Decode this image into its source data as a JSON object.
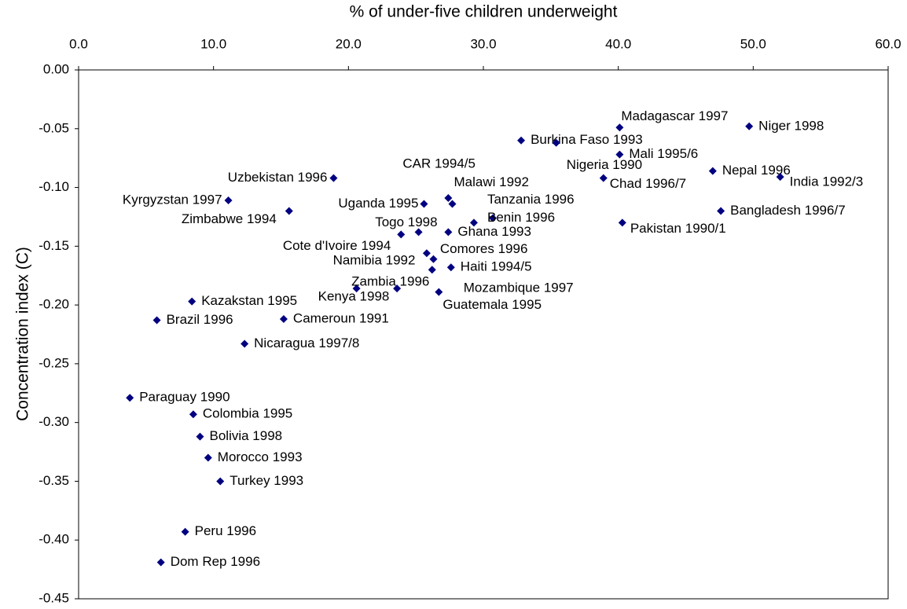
{
  "chart_data": {
    "type": "scatter",
    "x_label": "% of under-five children underweight",
    "y_label": "Concentration index (C)",
    "xlim": [
      0,
      60
    ],
    "xticks": [
      {
        "value": 0,
        "label": "0.0"
      },
      {
        "value": 10,
        "label": "10.0"
      },
      {
        "value": 20,
        "label": "20.0"
      },
      {
        "value": 30,
        "label": "30.0"
      },
      {
        "value": 40,
        "label": "40.0"
      },
      {
        "value": 50,
        "label": "50.0"
      },
      {
        "value": 60,
        "label": "60.0"
      }
    ],
    "ylim": [
      -0.45,
      0
    ],
    "yticks": [
      {
        "value": 0,
        "label": "0.00"
      },
      {
        "value": -0.05,
        "label": "-0.05"
      },
      {
        "value": -0.1,
        "label": "-0.10"
      },
      {
        "value": -0.15,
        "label": "-0.15"
      },
      {
        "value": -0.2,
        "label": "-0.20"
      },
      {
        "value": -0.25,
        "label": "-0.25"
      },
      {
        "value": -0.3,
        "label": "-0.30"
      },
      {
        "value": -0.35,
        "label": "-0.35"
      },
      {
        "value": -0.4,
        "label": "-0.40"
      },
      {
        "value": -0.45,
        "label": "-0.45"
      }
    ],
    "color": "#000080",
    "labels": [
      "Madagascar 1997",
      "Niger 1998",
      "Burkina Faso 1993",
      "Mali 1995/6",
      "Nigeria 1990",
      "Chad 1996/7",
      "Nepal 1996",
      "India 1992/3",
      "Uzbekistan 1996",
      "CAR 1994/5",
      "Malawi 1992",
      "Tanzania 1996",
      "Benin 1996",
      "Kyrgyzstan 1997",
      "Zimbabwe 1994",
      "Uganda 1995",
      "Bangladesh 1996/7",
      "Pakistan 1990/1",
      "Togo 1998",
      "Cote d'Ivoire 1994",
      "Ghana 1993",
      "Comores 1996",
      "Namibia 1992",
      "Haiti 1994/5",
      "Mozambique 1997",
      "Kenya 1998",
      "Zambia 1996",
      "Guatemala 1995",
      "Kazakstan 1995",
      "Brazil 1996",
      "Cameroun 1991",
      "Nicaragua 1997/8",
      "Paraguay 1990",
      "Colombia 1995",
      "Bolivia 1998",
      "Morocco 1993",
      "Turkey 1993",
      "Peru 1996",
      "Dom Rep 1996"
    ],
    "x": [
      40.1,
      49.7,
      32.8,
      40.1,
      35.4,
      38.9,
      47.0,
      52.0,
      18.9,
      27.4,
      27.7,
      29.3,
      30.7,
      11.1,
      15.6,
      25.6,
      47.6,
      40.3,
      25.2,
      23.9,
      27.4,
      25.8,
      26.3,
      27.6,
      26.2,
      20.6,
      23.6,
      26.7,
      8.4,
      5.8,
      15.2,
      12.3,
      3.8,
      8.5,
      9.0,
      9.6,
      10.5,
      7.9,
      6.1
    ],
    "values": [
      -0.049,
      -0.048,
      -0.06,
      -0.072,
      -0.062,
      -0.092,
      -0.086,
      -0.091,
      -0.092,
      -0.109,
      -0.114,
      -0.13,
      -0.126,
      -0.111,
      -0.12,
      -0.114,
      -0.12,
      -0.13,
      -0.138,
      -0.14,
      -0.138,
      -0.156,
      -0.161,
      -0.168,
      -0.17,
      -0.186,
      -0.186,
      -0.189,
      -0.197,
      -0.213,
      -0.212,
      -0.233,
      -0.279,
      -0.293,
      -0.312,
      -0.33,
      -0.35,
      -0.393,
      -0.419
    ]
  }
}
